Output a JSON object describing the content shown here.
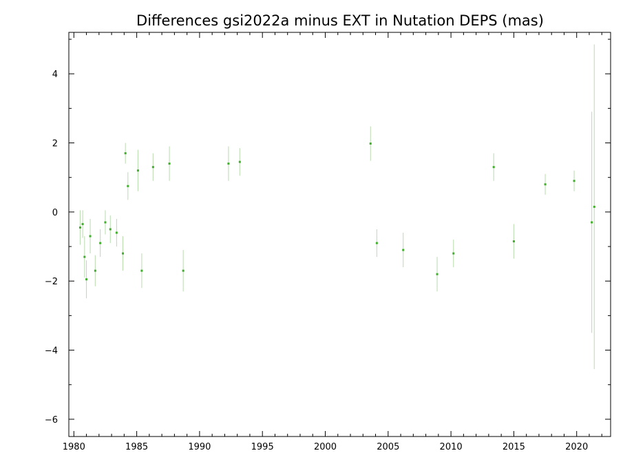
{
  "chart_data": {
    "type": "scatter",
    "title": "Differences gsi2022a minus EXT in Nutation DEPS (mas)",
    "xlabel": "",
    "ylabel": "",
    "xlim": [
      1979.6,
      2022.7
    ],
    "ylim": [
      -6.5,
      5.2
    ],
    "x_ticks": [
      1980,
      1985,
      1990,
      1995,
      2000,
      2005,
      2010,
      2015,
      2020
    ],
    "y_ticks": [
      -6,
      -4,
      -2,
      0,
      2,
      4
    ],
    "grid": false,
    "legend": "none",
    "colors": {
      "points": "#3fae2a",
      "error_bars": "#b8dbae",
      "axes": "#000000"
    },
    "series": [
      {
        "values": [
          {
            "x": 1980.5,
            "y": -0.45,
            "err": 0.5
          },
          {
            "x": 1980.7,
            "y": -0.35,
            "err": 0.4
          },
          {
            "x": 1980.85,
            "y": -1.3,
            "err": 0.6
          },
          {
            "x": 1981.0,
            "y": -1.95,
            "err": 0.55
          },
          {
            "x": 1981.3,
            "y": -0.7,
            "err": 0.5
          },
          {
            "x": 1981.7,
            "y": -1.7,
            "err": 0.45
          },
          {
            "x": 1982.1,
            "y": -0.9,
            "err": 0.4
          },
          {
            "x": 1982.5,
            "y": -0.3,
            "err": 0.35
          },
          {
            "x": 1982.9,
            "y": -0.5,
            "err": 0.4
          },
          {
            "x": 1983.4,
            "y": -0.6,
            "err": 0.4
          },
          {
            "x": 1983.9,
            "y": -1.2,
            "err": 0.5
          },
          {
            "x": 1984.1,
            "y": 1.7,
            "err": 0.3
          },
          {
            "x": 1984.3,
            "y": 0.75,
            "err": 0.4
          },
          {
            "x": 1985.1,
            "y": 1.2,
            "err": 0.6
          },
          {
            "x": 1985.4,
            "y": -1.7,
            "err": 0.5
          },
          {
            "x": 1986.3,
            "y": 1.3,
            "err": 0.4
          },
          {
            "x": 1987.6,
            "y": 1.4,
            "err": 0.5
          },
          {
            "x": 1988.7,
            "y": -1.7,
            "err": 0.6
          },
          {
            "x": 1992.3,
            "y": 1.4,
            "err": 0.5
          },
          {
            "x": 1993.2,
            "y": 1.45,
            "err": 0.4
          },
          {
            "x": 2003.6,
            "y": 1.98,
            "err": 0.5
          },
          {
            "x": 2004.1,
            "y": -0.9,
            "err": 0.4
          },
          {
            "x": 2006.2,
            "y": -1.1,
            "err": 0.5
          },
          {
            "x": 2008.9,
            "y": -1.8,
            "err": 0.5
          },
          {
            "x": 2010.2,
            "y": -1.2,
            "err": 0.4
          },
          {
            "x": 2013.4,
            "y": 1.3,
            "err": 0.4
          },
          {
            "x": 2015.0,
            "y": -0.85,
            "err": 0.5
          },
          {
            "x": 2017.5,
            "y": 0.8,
            "err": 0.3
          },
          {
            "x": 2019.8,
            "y": 0.9,
            "err": 0.3
          },
          {
            "x": 2021.2,
            "y": -0.3,
            "err": 3.2
          },
          {
            "x": 2021.4,
            "y": 0.15,
            "err": 4.7
          }
        ]
      }
    ]
  }
}
